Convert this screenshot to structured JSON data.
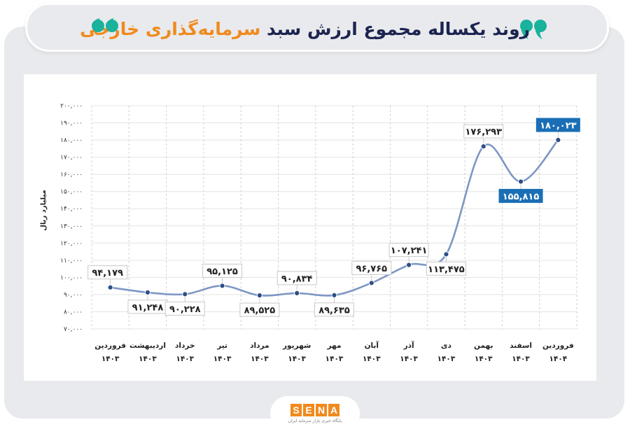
{
  "header": {
    "title_main": "روند یکساله مجموع ارزش سبد",
    "title_highlight": "سرمایه‌گذاری خارجی"
  },
  "colors": {
    "line": "#7d97c4",
    "point": "#2f4e86",
    "highlight": "#1a6eb5",
    "title": "#1c2450",
    "accent": "#f08a1d",
    "quote": "#19b29d"
  },
  "logo": {
    "letters": [
      "S",
      "E",
      "N",
      "A"
    ],
    "tagline": "پایگاه خبری بازار سرمایه ایران"
  },
  "chart_data": {
    "type": "line",
    "ylabel": "میلیارد ریال",
    "ylim": [
      70000,
      200000
    ],
    "yticks": [
      70000,
      80000,
      90000,
      100000,
      110000,
      120000,
      130000,
      140000,
      150000,
      160000,
      170000,
      180000,
      190000,
      200000
    ],
    "ytick_labels": [
      "۷۰,۰۰۰",
      "۸۰,۰۰۰",
      "۹۰,۰۰۰",
      "۱۰۰,۰۰۰",
      "۱۱۰,۰۰۰",
      "۱۲۰,۰۰۰",
      "۱۳۰,۰۰۰",
      "۱۴۰,۰۰۰",
      "۱۵۰,۰۰۰",
      "۱۶۰,۰۰۰",
      "۱۷۰,۰۰۰",
      "۱۸۰,۰۰۰",
      "۱۹۰,۰۰۰",
      "۲۰۰,۰۰۰"
    ],
    "grid": true,
    "categories": [
      {
        "month": "فروردین",
        "year": "۱۴۰۳"
      },
      {
        "month": "اردیبهشت",
        "year": "۱۴۰۳"
      },
      {
        "month": "خرداد",
        "year": "۱۴۰۳"
      },
      {
        "month": "تیر",
        "year": "۱۴۰۳"
      },
      {
        "month": "مرداد",
        "year": "۱۴۰۳"
      },
      {
        "month": "شهریور",
        "year": "۱۴۰۳"
      },
      {
        "month": "مهر",
        "year": "۱۴۰۳"
      },
      {
        "month": "آبان",
        "year": "۱۴۰۳"
      },
      {
        "month": "آذر",
        "year": "۱۴۰۳"
      },
      {
        "month": "دی",
        "year": "۱۴۰۳"
      },
      {
        "month": "بهمن",
        "year": "۱۴۰۳"
      },
      {
        "month": "اسفند",
        "year": "۱۴۰۳"
      },
      {
        "month": "فروردین",
        "year": "۱۴۰۴"
      }
    ],
    "values": [
      94179,
      91248,
      90228,
      95125,
      89525,
      90834,
      89635,
      96765,
      107241,
      113475,
      176293,
      155815,
      180023
    ],
    "labels": [
      "۹۴,۱۷۹",
      "۹۱,۲۴۸",
      "۹۰,۲۲۸",
      "۹۵,۱۲۵",
      "۸۹,۵۲۵",
      "۹۰,۸۳۴",
      "۸۹,۶۳۵",
      "۹۶,۷۶۵",
      "۱۰۷,۲۴۱",
      "۱۱۳,۴۷۵",
      "۱۷۶,۲۹۳",
      "۱۵۵,۸۱۵",
      "۱۸۰,۰۲۳"
    ],
    "highlighted": [
      11,
      12
    ]
  }
}
